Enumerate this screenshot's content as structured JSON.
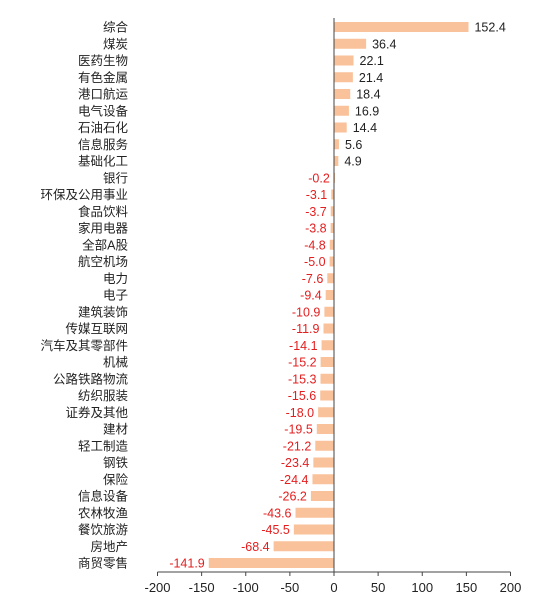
{
  "colors": {
    "bar": "#F9C29A",
    "positive_label": "#222222",
    "negative_label": "#E41E1E",
    "axis": "#444444"
  },
  "chart_data": {
    "type": "bar",
    "orientation": "horizontal",
    "title": "",
    "xlabel": "",
    "ylabel": "",
    "xlim": [
      -200,
      200
    ],
    "xticks": [
      -200,
      -150,
      -100,
      -50,
      0,
      50,
      100,
      150,
      200
    ],
    "grid": false,
    "legend": "none",
    "categories": [
      "综合",
      "煤炭",
      "医药生物",
      "有色金属",
      "港口航运",
      "电气设备",
      "石油石化",
      "信息服务",
      "基础化工",
      "银行",
      "环保及公用事业",
      "食品饮料",
      "家用电器",
      "全部A股",
      "航空机场",
      "电力",
      "电子",
      "建筑装饰",
      "传媒互联网",
      "汽车及其零部件",
      "机械",
      "公路铁路物流",
      "纺织服装",
      "证券及其他",
      "建材",
      "轻工制造",
      "钢铁",
      "保险",
      "信息设备",
      "农林牧渔",
      "餐饮旅游",
      "房地产",
      "商贸零售"
    ],
    "values": [
      152.4,
      36.4,
      22.1,
      21.4,
      18.4,
      16.9,
      14.4,
      5.6,
      4.9,
      -0.2,
      -3.1,
      -3.7,
      -3.8,
      -4.8,
      -5.0,
      -7.6,
      -9.4,
      -10.9,
      -11.9,
      -14.1,
      -15.2,
      -15.3,
      -15.6,
      -18.0,
      -19.5,
      -21.2,
      -23.4,
      -24.4,
      -26.2,
      -43.6,
      -45.5,
      -68.4,
      -141.9
    ],
    "value_labels": [
      "152.4",
      "36.4",
      "22.1",
      "21.4",
      "18.4",
      "16.9",
      "14.4",
      "5.6",
      "4.9",
      "-0.2",
      "-3.1",
      "-3.7",
      "-3.8",
      "-4.8",
      "-5.0",
      "-7.6",
      "-9.4",
      "-10.9",
      "-11.9",
      "-14.1",
      "-15.2",
      "-15.3",
      "-15.6",
      "-18.0",
      "-19.5",
      "-21.2",
      "-23.4",
      "-24.4",
      "-26.2",
      "-43.6",
      "-45.5",
      "-68.4",
      "-141.9"
    ],
    "tick_labels": [
      "-200",
      "-150",
      "-100",
      "-50",
      "0",
      "50",
      "100",
      "150",
      "200"
    ]
  }
}
